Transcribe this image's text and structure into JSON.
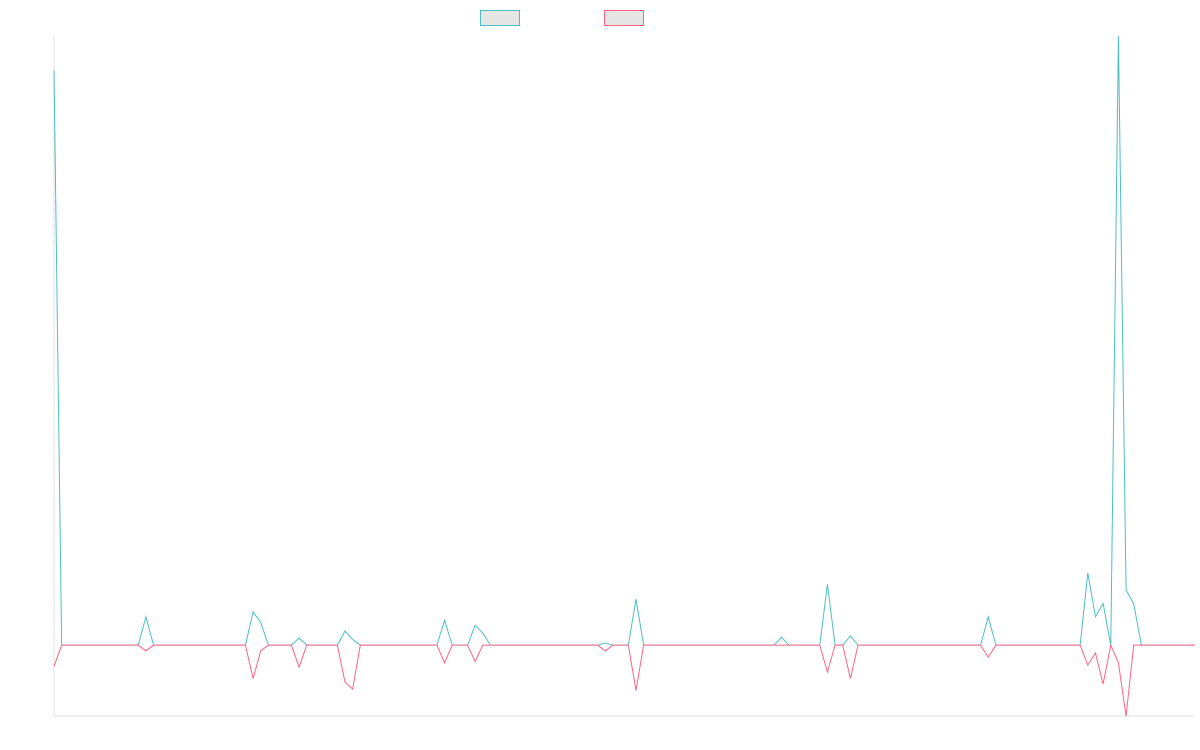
{
  "chart_data": {
    "type": "line",
    "ylim": [
      -10,
      86
    ],
    "legend": "top",
    "axis_color": "#e0e0e0",
    "series": [
      {
        "color": "#4bc0c0",
        "values": [
          81.2,
          0,
          0,
          0,
          0,
          0,
          0,
          0,
          0,
          0,
          0,
          0,
          4,
          0,
          0,
          0,
          0,
          0,
          0,
          0,
          0,
          0,
          0,
          0,
          0,
          0,
          4.7,
          3.2,
          0,
          0,
          0,
          0,
          1,
          0,
          0,
          0,
          0,
          0,
          2,
          0.8,
          0,
          0,
          0,
          0,
          0,
          0,
          0,
          0,
          0,
          0,
          0,
          3.5,
          0,
          0,
          0,
          2.8,
          1.7,
          0,
          0,
          0,
          0,
          0,
          0,
          0,
          0,
          0,
          0,
          0,
          0,
          0,
          0,
          0,
          0.3,
          0,
          0,
          0,
          6.5,
          0,
          0,
          0,
          0,
          0,
          0,
          0,
          0,
          0,
          0,
          0,
          0,
          0,
          0,
          0,
          0,
          0,
          0,
          1.1,
          0,
          0,
          0,
          0,
          0,
          8.6,
          0,
          0,
          1.3,
          0,
          0,
          0,
          0,
          0,
          0,
          0,
          0,
          0,
          0,
          0,
          0,
          0,
          0,
          0,
          0,
          0,
          4,
          0,
          0,
          0,
          0,
          0,
          0,
          0,
          0,
          0,
          0,
          0,
          0,
          10.2,
          4,
          5.9,
          0,
          86,
          7.8,
          5.8,
          0,
          0,
          0,
          0,
          0,
          0,
          0,
          0
        ]
      },
      {
        "color": "#ff6384",
        "values": [
          -3,
          0,
          0,
          0,
          0,
          0,
          0,
          0,
          0,
          0,
          0,
          0,
          -0.8,
          0,
          0,
          0,
          0,
          0,
          0,
          0,
          0,
          0,
          0,
          0,
          0,
          0,
          -4.7,
          -0.8,
          0,
          0,
          0,
          0,
          -3.1,
          0,
          0,
          0,
          0,
          0,
          -5.2,
          -6.2,
          0,
          0,
          0,
          0,
          0,
          0,
          0,
          0,
          0,
          0,
          0,
          -2.5,
          0,
          0,
          0,
          -2.3,
          0,
          0,
          0,
          0,
          0,
          0,
          0,
          0,
          0,
          0,
          0,
          0,
          0,
          0,
          0,
          0,
          -0.8,
          0,
          0,
          0,
          -6.4,
          0,
          0,
          0,
          0,
          0,
          0,
          0,
          0,
          0,
          0,
          0,
          0,
          0,
          0,
          0,
          0,
          0,
          0,
          0,
          0,
          0,
          0,
          0,
          0,
          -3.8,
          0,
          0,
          -4.7,
          0,
          0,
          0,
          0,
          0,
          0,
          0,
          0,
          0,
          0,
          0,
          0,
          0,
          0,
          0,
          0,
          0,
          -1.7,
          0,
          0,
          0,
          0,
          0,
          0,
          0,
          0,
          0,
          0,
          0,
          0,
          -2.8,
          -1.1,
          -5.5,
          0,
          -2.5,
          -10,
          0,
          0,
          0,
          0,
          0,
          0,
          0,
          0,
          0
        ]
      }
    ]
  }
}
